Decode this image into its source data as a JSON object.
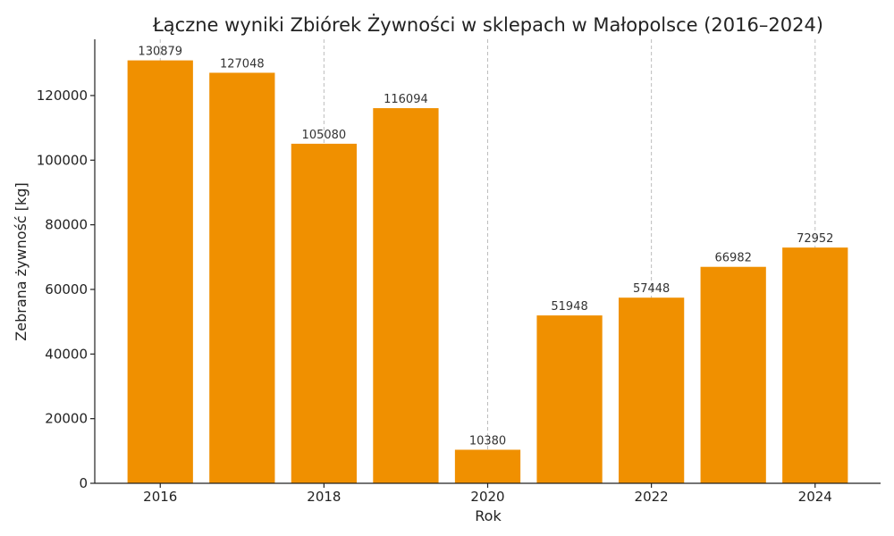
{
  "chart_data": {
    "type": "bar",
    "title": "Łączne wyniki Zbiórek Żywności w sklepach w Małopolsce (2016–2024)",
    "xlabel": "Rok",
    "ylabel": "Zebrana żywność [kg]",
    "categories": [
      2016,
      2017,
      2018,
      2019,
      2020,
      2021,
      2022,
      2023,
      2024
    ],
    "values": [
      130879,
      127048,
      105080,
      116094,
      10380,
      51948,
      57448,
      66982,
      72952
    ],
    "x_ticks": [
      2016,
      2018,
      2020,
      2022,
      2024
    ],
    "y_ticks": [
      0,
      20000,
      40000,
      60000,
      80000,
      100000,
      120000
    ],
    "ylim": [
      0,
      137400
    ],
    "grid": "x-dashed",
    "bar_color": "#f09000"
  }
}
